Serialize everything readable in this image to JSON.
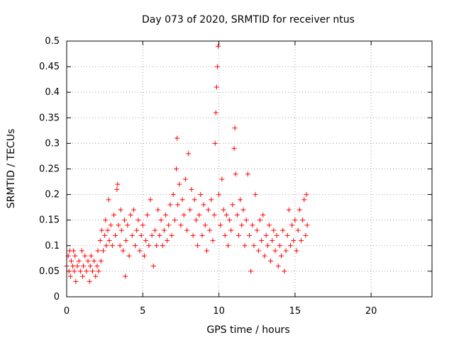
{
  "chart_data": {
    "type": "scatter",
    "title": "Day 073 of 2020, SRMTID for receiver ntus",
    "xlabel": "GPS time / hours",
    "ylabel": "SRMTID / TECUs",
    "xlim": [
      0,
      24
    ],
    "ylim": [
      0,
      0.5
    ],
    "xticks": [
      0,
      5,
      10,
      15,
      20
    ],
    "xtick_labels": [
      "0",
      "5",
      "10",
      "15",
      "20"
    ],
    "yticks": [
      0,
      0.05,
      0.1,
      0.15,
      0.2,
      0.25,
      0.3,
      0.35,
      0.4,
      0.45,
      0.5
    ],
    "ytick_labels": [
      "0",
      "0.05",
      "0.1",
      "0.15",
      "0.2",
      "0.25",
      "0.3",
      "0.35",
      "0.4",
      "0.45",
      "0.5"
    ],
    "grid": true,
    "legend": "none",
    "marker": "+",
    "color": "#ff0000",
    "series": [
      {
        "points": [
          [
            0.0,
            0.06
          ],
          [
            0.1,
            0.08
          ],
          [
            0.15,
            0.05
          ],
          [
            0.2,
            0.09
          ],
          [
            0.25,
            0.04
          ],
          [
            0.3,
            0.07
          ],
          [
            0.4,
            0.06
          ],
          [
            0.45,
            0.09
          ],
          [
            0.5,
            0.05
          ],
          [
            0.55,
            0.08
          ],
          [
            0.6,
            0.03
          ],
          [
            0.7,
            0.06
          ],
          [
            0.8,
            0.07
          ],
          [
            0.9,
            0.05
          ],
          [
            1.0,
            0.09
          ],
          [
            1.05,
            0.04
          ],
          [
            1.1,
            0.06
          ],
          [
            1.2,
            0.08
          ],
          [
            1.3,
            0.05
          ],
          [
            1.4,
            0.07
          ],
          [
            1.5,
            0.03
          ],
          [
            1.55,
            0.06
          ],
          [
            1.6,
            0.08
          ],
          [
            1.7,
            0.05
          ],
          [
            1.8,
            0.07
          ],
          [
            1.9,
            0.04
          ],
          [
            2.0,
            0.06
          ],
          [
            2.05,
            0.09
          ],
          [
            2.1,
            0.05
          ],
          [
            2.2,
            0.11
          ],
          [
            2.25,
            0.07
          ],
          [
            2.3,
            0.13
          ],
          [
            2.4,
            0.09
          ],
          [
            2.5,
            0.12
          ],
          [
            2.55,
            0.15
          ],
          [
            2.6,
            0.1
          ],
          [
            2.7,
            0.13
          ],
          [
            2.75,
            0.19
          ],
          [
            2.8,
            0.11
          ],
          [
            2.9,
            0.14
          ],
          [
            3.0,
            0.1
          ],
          [
            3.1,
            0.16
          ],
          [
            3.2,
            0.12
          ],
          [
            3.3,
            0.21
          ],
          [
            3.35,
            0.22
          ],
          [
            3.4,
            0.14
          ],
          [
            3.5,
            0.1
          ],
          [
            3.55,
            0.17
          ],
          [
            3.6,
            0.13
          ],
          [
            3.7,
            0.09
          ],
          [
            3.8,
            0.15
          ],
          [
            3.85,
            0.04
          ],
          [
            3.9,
            0.11
          ],
          [
            4.0,
            0.14
          ],
          [
            4.1,
            0.08
          ],
          [
            4.2,
            0.16
          ],
          [
            4.3,
            0.12
          ],
          [
            4.4,
            0.17
          ],
          [
            4.5,
            0.1
          ],
          [
            4.6,
            0.13
          ],
          [
            4.7,
            0.15
          ],
          [
            4.8,
            0.09
          ],
          [
            4.9,
            0.12
          ],
          [
            5.0,
            0.14
          ],
          [
            5.1,
            0.08
          ],
          [
            5.2,
            0.11
          ],
          [
            5.3,
            0.16
          ],
          [
            5.4,
            0.1
          ],
          [
            5.5,
            0.19
          ],
          [
            5.6,
            0.12
          ],
          [
            5.7,
            0.06
          ],
          [
            5.8,
            0.13
          ],
          [
            5.9,
            0.1
          ],
          [
            6.0,
            0.17
          ],
          [
            6.1,
            0.12
          ],
          [
            6.2,
            0.15
          ],
          [
            6.3,
            0.1
          ],
          [
            6.4,
            0.13
          ],
          [
            6.5,
            0.16
          ],
          [
            6.6,
            0.11
          ],
          [
            6.7,
            0.14
          ],
          [
            6.8,
            0.18
          ],
          [
            6.9,
            0.12
          ],
          [
            7.0,
            0.2
          ],
          [
            7.1,
            0.15
          ],
          [
            7.2,
            0.25
          ],
          [
            7.25,
            0.31
          ],
          [
            7.3,
            0.18
          ],
          [
            7.4,
            0.22
          ],
          [
            7.5,
            0.14
          ],
          [
            7.6,
            0.19
          ],
          [
            7.7,
            0.16
          ],
          [
            7.8,
            0.23
          ],
          [
            7.9,
            0.13
          ],
          [
            8.0,
            0.28
          ],
          [
            8.1,
            0.17
          ],
          [
            8.2,
            0.21
          ],
          [
            8.3,
            0.12
          ],
          [
            8.4,
            0.19
          ],
          [
            8.5,
            0.15
          ],
          [
            8.6,
            0.1
          ],
          [
            8.7,
            0.16
          ],
          [
            8.8,
            0.2
          ],
          [
            8.9,
            0.12
          ],
          [
            9.0,
            0.18
          ],
          [
            9.1,
            0.14
          ],
          [
            9.2,
            0.09
          ],
          [
            9.3,
            0.17
          ],
          [
            9.4,
            0.13
          ],
          [
            9.5,
            0.19
          ],
          [
            9.6,
            0.11
          ],
          [
            9.7,
            0.16
          ],
          [
            9.75,
            0.3
          ],
          [
            9.8,
            0.36
          ],
          [
            9.85,
            0.41
          ],
          [
            9.9,
            0.45
          ],
          [
            9.95,
            0.49
          ],
          [
            10.0,
            0.2
          ],
          [
            10.1,
            0.14
          ],
          [
            10.2,
            0.23
          ],
          [
            10.3,
            0.17
          ],
          [
            10.4,
            0.12
          ],
          [
            10.5,
            0.16
          ],
          [
            10.6,
            0.1
          ],
          [
            10.7,
            0.15
          ],
          [
            10.8,
            0.13
          ],
          [
            10.9,
            0.18
          ],
          [
            11.0,
            0.29
          ],
          [
            11.05,
            0.33
          ],
          [
            11.1,
            0.24
          ],
          [
            11.2,
            0.16
          ],
          [
            11.3,
            0.12
          ],
          [
            11.4,
            0.19
          ],
          [
            11.5,
            0.14
          ],
          [
            11.6,
            0.17
          ],
          [
            11.7,
            0.1
          ],
          [
            11.8,
            0.15
          ],
          [
            11.9,
            0.24
          ],
          [
            12.0,
            0.12
          ],
          [
            12.1,
            0.05
          ],
          [
            12.2,
            0.14
          ],
          [
            12.3,
            0.1
          ],
          [
            12.4,
            0.2
          ],
          [
            12.5,
            0.13
          ],
          [
            12.6,
            0.09
          ],
          [
            12.7,
            0.15
          ],
          [
            12.8,
            0.11
          ],
          [
            12.9,
            0.16
          ],
          [
            13.0,
            0.08
          ],
          [
            13.1,
            0.12
          ],
          [
            13.2,
            0.1
          ],
          [
            13.3,
            0.14
          ],
          [
            13.4,
            0.07
          ],
          [
            13.5,
            0.11
          ],
          [
            13.6,
            0.13
          ],
          [
            13.7,
            0.09
          ],
          [
            13.8,
            0.12
          ],
          [
            13.9,
            0.06
          ],
          [
            14.0,
            0.1
          ],
          [
            14.1,
            0.08
          ],
          [
            14.2,
            0.13
          ],
          [
            14.3,
            0.05
          ],
          [
            14.4,
            0.09
          ],
          [
            14.5,
            0.12
          ],
          [
            14.6,
            0.17
          ],
          [
            14.7,
            0.1
          ],
          [
            14.8,
            0.14
          ],
          [
            14.9,
            0.11
          ],
          [
            15.0,
            0.15
          ],
          [
            15.1,
            0.09
          ],
          [
            15.2,
            0.13
          ],
          [
            15.3,
            0.17
          ],
          [
            15.4,
            0.11
          ],
          [
            15.5,
            0.15
          ],
          [
            15.6,
            0.19
          ],
          [
            15.7,
            0.12
          ],
          [
            15.75,
            0.2
          ],
          [
            15.8,
            0.14
          ]
        ]
      }
    ]
  }
}
